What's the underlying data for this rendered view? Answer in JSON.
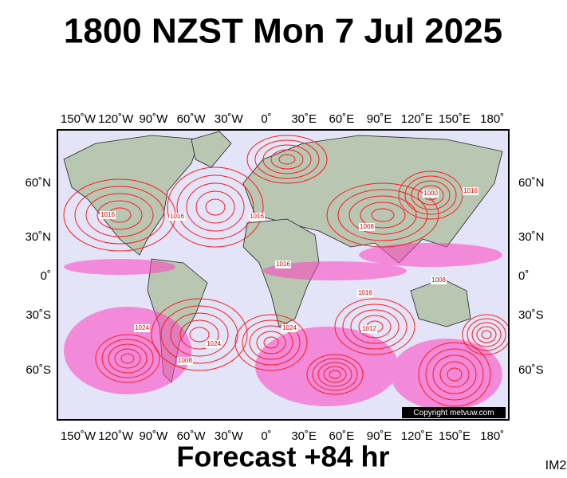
{
  "title": "1800 NZST Mon 7 Jul 2025",
  "map": {
    "longitude_labels": [
      "150˚W",
      "120˚W",
      "90˚W",
      "60˚W",
      "30˚W",
      "0˚",
      "30˚E",
      "60˚E",
      "90˚E",
      "120˚E",
      "150˚E",
      "180˚"
    ],
    "latitude_labels": [
      "60˚N",
      "30˚N",
      "0˚",
      "30˚S",
      "60˚S"
    ],
    "isobar_labels": [
      "1016",
      "1016",
      "1016",
      "1008",
      "1000",
      "1016",
      "1024",
      "1024",
      "1024",
      "1012",
      "1008",
      "1016",
      "1008",
      "1016"
    ],
    "copyright": "Copyright metvuw.com"
  },
  "footer": {
    "forecast": "Forecast +84 hr",
    "image_id": "IM2"
  }
}
